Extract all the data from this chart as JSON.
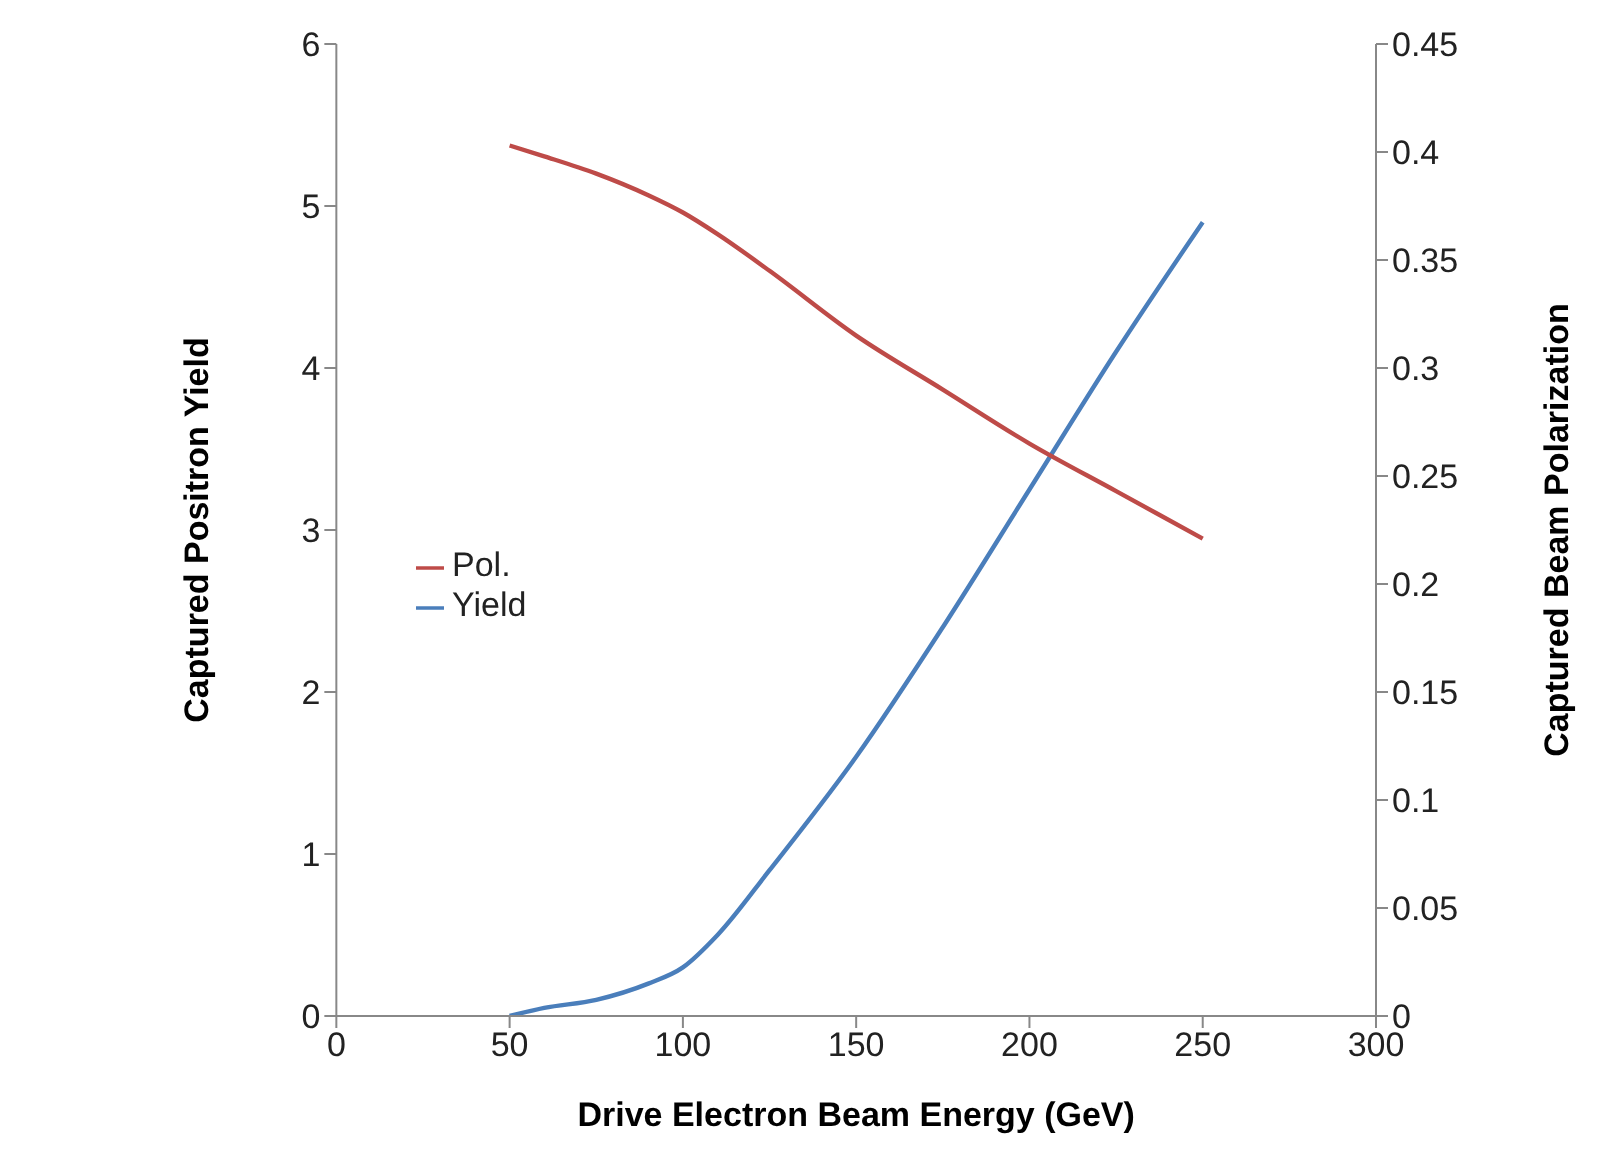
{
  "chart_data": {
    "type": "line",
    "xlabel": "Drive Electron Beam Energy (GeV)",
    "ylabel": "Captured Positron Yield",
    "y2label": "Captured Beam Polarization",
    "x": [
      50,
      60,
      75,
      90,
      100,
      110,
      125,
      150,
      175,
      200,
      225,
      250
    ],
    "series": [
      {
        "name": "Yield",
        "color": "#4a7ebb",
        "values": [
          0,
          0.05,
          0.1,
          0.2,
          0.3,
          0.5,
          0.9,
          1.6,
          2.4,
          3.25,
          4.1,
          4.9
        ]
      },
      {
        "name": "Pol.",
        "color": "#be4b48",
        "axis": "y2",
        "values": [
          0.403,
          0.398,
          0.39,
          0.38,
          0.372,
          0.362,
          0.345,
          0.315,
          0.29,
          0.265,
          0.243,
          0.221
        ]
      }
    ],
    "xlim": [
      0,
      300
    ],
    "xticks": [
      0,
      50,
      100,
      150,
      200,
      250,
      300
    ],
    "ylim": [
      0,
      6
    ],
    "yticks": [
      0,
      1,
      2,
      3,
      4,
      5,
      6
    ],
    "y2lim": [
      0,
      0.45
    ],
    "y2ticks": [
      0,
      0.05,
      0.1,
      0.15,
      0.2,
      0.25,
      0.3,
      0.35,
      0.4,
      0.45
    ],
    "legend": "left",
    "grid": false,
    "marker": "none",
    "line_style": "solid"
  }
}
